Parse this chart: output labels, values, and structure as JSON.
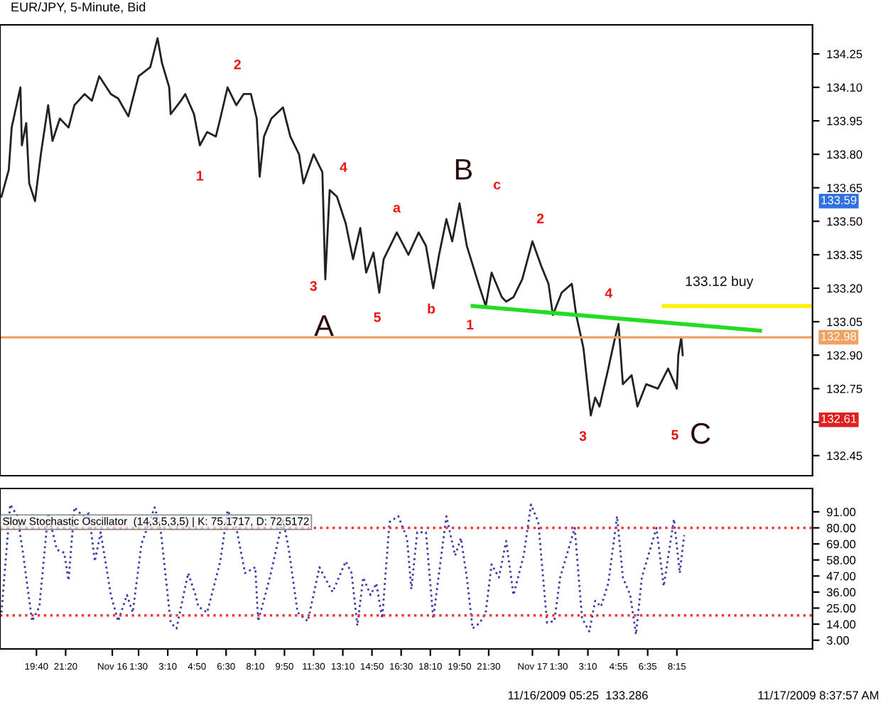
{
  "chart_data": [
    {
      "type": "line",
      "title": "EUR/JPY, 5-Minute, Bid",
      "series": [
        {
          "color": "#222222",
          "x": [
            "2009-11-15T17:40",
            "2009-11-15T18:05",
            "2009-11-15T18:15",
            "2009-11-15T18:45",
            "2009-11-15T18:50",
            "2009-11-15T19:05",
            "2009-11-15T19:15",
            "2009-11-15T19:35",
            "2009-11-15T19:55",
            "2009-11-15T20:20",
            "2009-11-15T20:35",
            "2009-11-15T21:00",
            "2009-11-15T21:30",
            "2009-11-15T21:50",
            "2009-11-15T22:25",
            "2009-11-15T22:50",
            "2009-11-15T23:15",
            "2009-11-15T23:55",
            "2009-11-16T00:20",
            "2009-11-16T00:55",
            "2009-11-16T01:30",
            "2009-11-16T02:10",
            "2009-11-16T02:35",
            "2009-11-16T02:50",
            "2009-11-16T03:15",
            "2009-11-16T03:20",
            "2009-11-16T03:55",
            "2009-11-16T04:10",
            "2009-11-16T04:40",
            "2009-11-16T05:00",
            "2009-11-16T05:25",
            "2009-11-16T05:55",
            "2009-11-16T06:10",
            "2009-11-16T06:35",
            "2009-11-16T07:05",
            "2009-11-16T07:30",
            "2009-11-16T07:55",
            "2009-11-16T08:15",
            "2009-11-16T08:25",
            "2009-11-16T08:40",
            "2009-11-16T09:05",
            "2009-11-16T09:45",
            "2009-11-16T10:10",
            "2009-11-16T10:40",
            "2009-11-16T10:55",
            "2009-11-16T11:30",
            "2009-11-16T12:00",
            "2009-11-16T12:10",
            "2009-11-16T12:25",
            "2009-11-16T12:50",
            "2009-11-16T13:20",
            "2009-11-16T13:45",
            "2009-11-16T14:10",
            "2009-11-16T14:30",
            "2009-11-16T14:55",
            "2009-11-16T15:15",
            "2009-11-16T15:30",
            "2009-11-16T16:15",
            "2009-11-16T16:55",
            "2009-11-16T17:30",
            "2009-11-16T17:55",
            "2009-11-16T18:20",
            "2009-11-16T18:40",
            "2009-11-16T19:05",
            "2009-11-16T19:25",
            "2009-11-16T19:50",
            "2009-11-16T20:15",
            "2009-11-16T20:55",
            "2009-11-16T21:20",
            "2009-11-16T21:40",
            "2009-11-16T22:15",
            "2009-11-16T22:30",
            "2009-11-16T22:55",
            "2009-11-16T23:25",
            "2009-11-17T00:00",
            "2009-11-17T00:30",
            "2009-11-17T00:55",
            "2009-11-17T01:10",
            "2009-11-17T01:40",
            "2009-11-17T02:15",
            "2009-11-17T02:30",
            "2009-11-17T02:55",
            "2009-11-17T03:20",
            "2009-11-17T03:35",
            "2009-11-17T03:50",
            "2009-11-17T04:20",
            "2009-11-17T04:40",
            "2009-11-17T04:55",
            "2009-11-17T05:10",
            "2009-11-17T05:40",
            "2009-11-17T06:00",
            "2009-11-17T06:30",
            "2009-11-17T07:10",
            "2009-11-17T07:45",
            "2009-11-17T08:15",
            "2009-11-17T08:20",
            "2009-11-17T08:30",
            "2009-11-17T08:35"
          ],
          "values": [
            133.61,
            133.73,
            133.92,
            134.1,
            133.84,
            133.94,
            133.67,
            133.59,
            133.8,
            134.02,
            133.86,
            133.96,
            133.92,
            134.02,
            134.07,
            134.04,
            134.15,
            134.07,
            134.05,
            133.97,
            134.15,
            134.19,
            134.32,
            134.21,
            134.1,
            133.98,
            134.04,
            134.07,
            133.98,
            133.84,
            133.9,
            133.88,
            133.96,
            134.1,
            134.02,
            134.07,
            134.07,
            133.96,
            133.7,
            133.88,
            133.96,
            134.01,
            133.88,
            133.8,
            133.67,
            133.8,
            133.72,
            133.24,
            133.64,
            133.61,
            133.49,
            133.33,
            133.47,
            133.27,
            133.36,
            133.18,
            133.33,
            133.45,
            133.35,
            133.45,
            133.39,
            133.2,
            133.35,
            133.51,
            133.41,
            133.58,
            133.39,
            133.22,
            133.12,
            133.27,
            133.16,
            133.14,
            133.16,
            133.24,
            133.41,
            133.3,
            133.22,
            133.08,
            133.18,
            133.22,
            133.08,
            132.93,
            132.63,
            132.71,
            132.67,
            132.84,
            132.96,
            133.04,
            132.77,
            132.81,
            132.67,
            132.77,
            132.75,
            132.84,
            132.75,
            132.9,
            132.98,
            132.9
          ]
        },
        {
          "color": "#22dd22",
          "x": [
            "2009-11-16T20:35",
            "2009-11-17T13:00"
          ],
          "values": [
            133.12,
            133.01
          ]
        },
        {
          "color": "#ffee00",
          "x": [
            "2009-11-17T07:30",
            "2009-11-17T16:00"
          ],
          "values": [
            133.12,
            133.12
          ]
        }
      ],
      "xlim": [
        "2009-11-15T17:35",
        "2009-11-17T16:00"
      ],
      "ylim": [
        132.36,
        134.38
      ],
      "yticks": [
        {
          "value": 132.45,
          "label": "132.45"
        },
        {
          "value": 132.6,
          "label": null
        },
        {
          "value": 132.75,
          "label": "132.75"
        },
        {
          "value": 132.9,
          "label": "132.90"
        },
        {
          "value": 133.05,
          "label": "133.05"
        },
        {
          "value": 133.2,
          "label": "133.20"
        },
        {
          "value": 133.35,
          "label": "133.35"
        },
        {
          "value": 133.5,
          "label": "133.50"
        },
        {
          "value": 133.65,
          "label": "133.65"
        },
        {
          "value": 133.8,
          "label": "133.80"
        },
        {
          "value": 133.95,
          "label": "133.95"
        },
        {
          "value": 134.1,
          "label": "134.10"
        },
        {
          "value": 134.25,
          "label": "134.25"
        }
      ],
      "tick_labels": "y",
      "grid": false,
      "legend": false,
      "marker": "none",
      "line_style": "solid",
      "ref_lines": [
        {
          "axis": "y",
          "value": 132.98,
          "label": "132.98",
          "color": "#f0a060"
        }
      ],
      "annotations": [
        {
          "text": "1",
          "x": "2009-11-16T05:00",
          "y": 133.84
        },
        {
          "text": "2",
          "x": "2009-11-16T06:35",
          "y": 134.1
        },
        {
          "text": "3",
          "x": "2009-11-16T12:10",
          "y": 133.24
        },
        {
          "text": "4",
          "x": "2009-11-16T12:25",
          "y": 133.64
        },
        {
          "text": "5",
          "x": "2009-11-16T15:15",
          "y": 133.18
        },
        {
          "text": "a",
          "x": "2009-11-16T16:15",
          "y": 133.45
        },
        {
          "text": "b",
          "x": "2009-11-16T18:20",
          "y": 133.2
        },
        {
          "text": "c",
          "x": "2009-11-16T19:50",
          "y": 133.58
        },
        {
          "text": "1",
          "x": "2009-11-16T21:20",
          "y": 133.12
        },
        {
          "text": "2",
          "x": "2009-11-17T00:00",
          "y": 133.41
        },
        {
          "text": "3",
          "x": "2009-11-17T03:20",
          "y": 132.63
        },
        {
          "text": "4",
          "x": "2009-11-17T04:55",
          "y": 133.04
        },
        {
          "text": "5",
          "x": "2009-11-17T08:15",
          "y": 132.75
        },
        {
          "text": "A",
          "x": "2009-11-16T15:15",
          "y": 133.18
        },
        {
          "text": "B",
          "x": "2009-11-16T19:50",
          "y": 133.58
        },
        {
          "text": "C",
          "x": "2009-11-17T08:15",
          "y": 132.75
        },
        {
          "text": "133.12 buy",
          "x": "2009-11-17T10:40",
          "y": 133.12
        },
        "133.59",
        "132.61",
        "11/16/2009 05:25  133.286",
        "11/17/2009 8:37:57 AM"
      ]
    },
    {
      "type": "line",
      "series": [
        {
          "color": "#3a3aa8",
          "x": [
            "2009-11-15T17:40",
            "2009-11-15T18:10",
            "2009-11-15T18:35",
            "2009-11-15T18:55",
            "2009-11-15T19:25",
            "2009-11-15T19:50",
            "2009-11-15T20:20",
            "2009-11-15T20:50",
            "2009-11-15T21:15",
            "2009-11-15T21:30",
            "2009-11-15T21:50",
            "2009-11-15T22:20",
            "2009-11-15T22:40",
            "2009-11-15T23:00",
            "2009-11-15T23:20",
            "2009-11-15T23:55",
            "2009-11-16T00:20",
            "2009-11-16T00:50",
            "2009-11-16T01:10",
            "2009-11-16T01:40",
            "2009-11-16T02:25",
            "2009-11-16T02:45",
            "2009-11-16T03:20",
            "2009-11-16T03:40",
            "2009-11-16T04:20",
            "2009-11-16T04:45",
            "2009-11-16T04:55",
            "2009-11-16T05:25",
            "2009-11-16T06:10",
            "2009-11-16T06:35",
            "2009-11-16T07:05",
            "2009-11-16T07:35",
            "2009-11-16T08:10",
            "2009-11-16T08:20",
            "2009-11-16T09:00",
            "2009-11-16T09:45",
            "2009-11-16T10:05",
            "2009-11-16T10:35",
            "2009-11-16T11:10",
            "2009-11-16T11:50",
            "2009-11-16T12:35",
            "2009-11-16T13:20",
            "2009-11-16T13:40",
            "2009-11-16T14:00",
            "2009-11-16T14:20",
            "2009-11-16T14:45",
            "2009-11-16T15:05",
            "2009-11-16T15:25",
            "2009-11-16T15:50",
            "2009-11-16T16:20",
            "2009-11-16T16:50",
            "2009-11-16T17:05",
            "2009-11-16T17:25",
            "2009-11-16T17:55",
            "2009-11-16T18:20",
            "2009-11-16T19:05",
            "2009-11-16T19:35",
            "2009-11-16T19:55",
            "2009-11-16T20:15",
            "2009-11-16T20:35",
            "2009-11-16T21:00",
            "2009-11-16T21:20",
            "2009-11-16T21:40",
            "2009-11-16T22:05",
            "2009-11-16T22:30",
            "2009-11-16T22:55",
            "2009-11-16T23:30",
            "2009-11-16T23:55",
            "2009-11-17T00:20",
            "2009-11-17T00:50",
            "2009-11-17T01:15",
            "2009-11-17T01:35",
            "2009-11-17T02:25",
            "2009-11-17T02:50",
            "2009-11-17T03:15",
            "2009-11-17T03:35",
            "2009-11-17T03:55",
            "2009-11-17T04:20",
            "2009-11-17T04:50",
            "2009-11-17T05:10",
            "2009-11-17T05:35",
            "2009-11-17T05:55",
            "2009-11-17T06:15",
            "2009-11-17T07:05",
            "2009-11-17T07:30",
            "2009-11-17T08:05",
            "2009-11-17T08:25",
            "2009-11-17T08:40"
          ],
          "values": [
            22,
            96,
            88,
            61,
            16,
            26,
            90,
            65,
            63,
            44,
            94,
            88,
            90,
            57,
            77,
            34,
            16,
            34,
            22,
            69,
            94,
            80,
            15,
            11,
            49,
            34,
            26,
            22,
            57,
            92,
            80,
            49,
            53,
            16,
            46,
            86,
            65,
            22,
            16,
            53,
            36,
            57,
            49,
            13,
            46,
            34,
            42,
            18,
            84,
            88,
            73,
            38,
            77,
            77,
            18,
            88,
            61,
            73,
            46,
            11,
            15,
            22,
            55,
            46,
            71,
            34,
            61,
            96,
            84,
            15,
            16,
            46,
            80,
            18,
            9,
            30,
            26,
            42,
            88,
            46,
            34,
            7,
            46,
            80,
            40,
            86,
            49,
            75
          ]
        }
      ],
      "xlim": [
        "2009-11-15T17:35",
        "2009-11-17T16:00"
      ],
      "ylim": [
        -3,
        107
      ],
      "xticks": [
        {
          "value": "2009-11-15T19:40",
          "label": "19:40"
        },
        {
          "value": "2009-11-15T21:20",
          "label": "21:20"
        },
        {
          "value": "2009-11-16T00:00",
          "label": "Nov 16"
        },
        {
          "value": "2009-11-16T01:30",
          "label": "1:30"
        },
        {
          "value": "2009-11-16T03:10",
          "label": "3:10"
        },
        {
          "value": "2009-11-16T04:50",
          "label": "4:50"
        },
        {
          "value": "2009-11-16T06:30",
          "label": "6:30"
        },
        {
          "value": "2009-11-16T08:10",
          "label": "8:10"
        },
        {
          "value": "2009-11-16T09:50",
          "label": "9:50"
        },
        {
          "value": "2009-11-16T11:30",
          "label": "11:30"
        },
        {
          "value": "2009-11-16T13:10",
          "label": "13:10"
        },
        {
          "value": "2009-11-16T14:50",
          "label": "14:50"
        },
        {
          "value": "2009-11-16T16:30",
          "label": "16:30"
        },
        {
          "value": "2009-11-16T18:10",
          "label": "18:10"
        },
        {
          "value": "2009-11-16T19:50",
          "label": "19:50"
        },
        {
          "value": "2009-11-16T21:30",
          "label": "21:30"
        },
        {
          "value": "2009-11-17T00:00",
          "label": "Nov 17"
        },
        {
          "value": "2009-11-17T01:30",
          "label": "1:30"
        },
        {
          "value": "2009-11-17T03:10",
          "label": "3:10"
        },
        {
          "value": "2009-11-17T04:55",
          "label": "4:55"
        },
        {
          "value": "2009-11-17T06:35",
          "label": "6:35"
        },
        {
          "value": "2009-11-17T08:15",
          "label": "8:15"
        }
      ],
      "yticks": [
        {
          "value": 3,
          "label": "3.00"
        },
        {
          "value": 14,
          "label": "14.00"
        },
        {
          "value": 25,
          "label": "25.00"
        },
        {
          "value": 36,
          "label": "36.00"
        },
        {
          "value": 47,
          "label": "47.00"
        },
        {
          "value": 58,
          "label": "58.00"
        },
        {
          "value": 69,
          "label": "69.00"
        },
        {
          "value": 80,
          "label": "80.00"
        },
        {
          "value": 91,
          "label": "91.00"
        }
      ],
      "grid": false,
      "legend": false,
      "marker": "none",
      "line_style": "dotted",
      "ref_lines": [
        {
          "axis": "y",
          "value": 80,
          "color": "#ff3333",
          "line_style": "dotted"
        },
        {
          "axis": "y",
          "value": 20,
          "color": "#ff3333",
          "line_style": "dotted"
        }
      ],
      "annotations": [
        "Slow Stochastic Oscillator  (14,3,5,3,5) | K: 75.1717, D: 72.5172"
      ]
    }
  ]
}
